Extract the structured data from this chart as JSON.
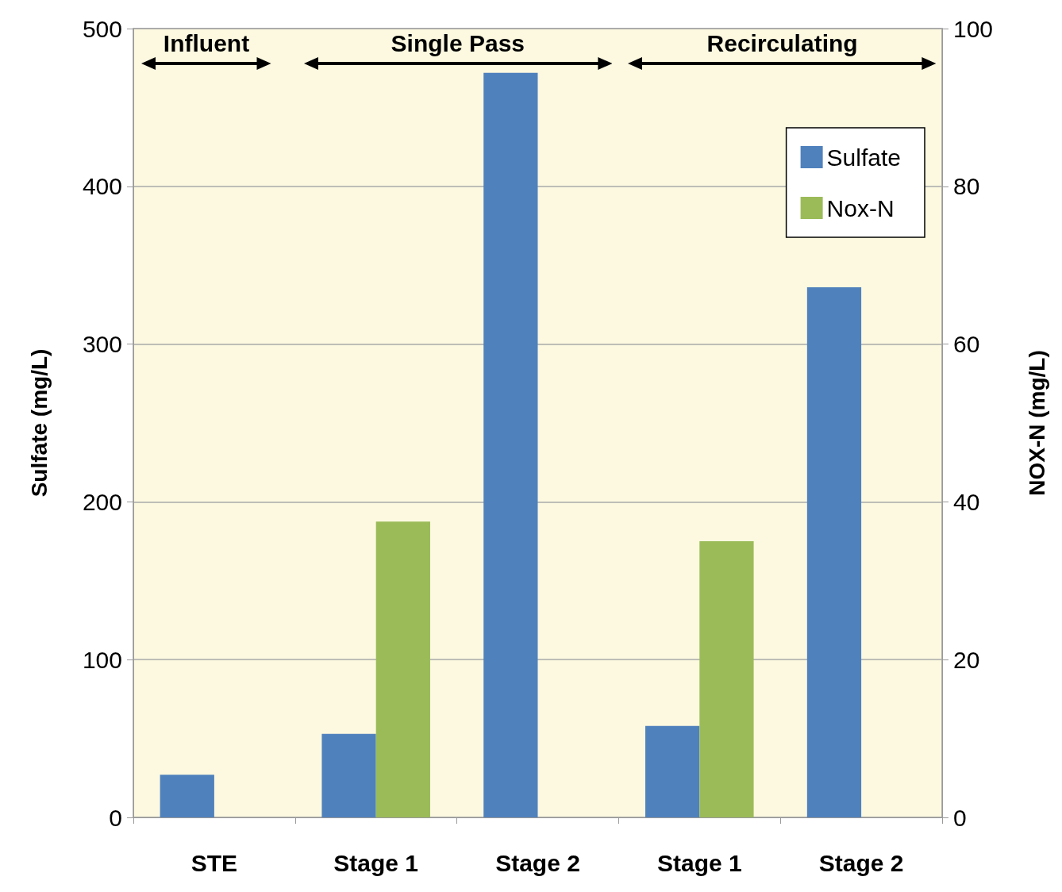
{
  "chart_data": {
    "type": "bar",
    "categories": [
      "STE",
      "Stage 1",
      "Stage 2",
      "Stage 1",
      "Stage 2"
    ],
    "series": [
      {
        "name": "Sulfate",
        "color": "#4f81bd",
        "values": [
          27,
          53,
          472,
          58,
          336
        ]
      },
      {
        "name": "Nox-N",
        "color": "#9bbb59",
        "axis": "y2",
        "values": [
          null,
          37.5,
          null,
          35,
          null
        ]
      }
    ],
    "ylabel": "Sulfate (mg/L)",
    "y2label": "NOX-N (mg/L)",
    "ylim": [
      0,
      500
    ],
    "yticks": [
      0,
      100,
      200,
      300,
      400,
      500
    ],
    "y2lim": [
      0,
      100
    ],
    "y2ticks": [
      0,
      20,
      40,
      60,
      80,
      100
    ],
    "annotations": [
      "Influent",
      "Single Pass",
      "Recirculating"
    ],
    "grid": "y",
    "legend": "top right"
  }
}
